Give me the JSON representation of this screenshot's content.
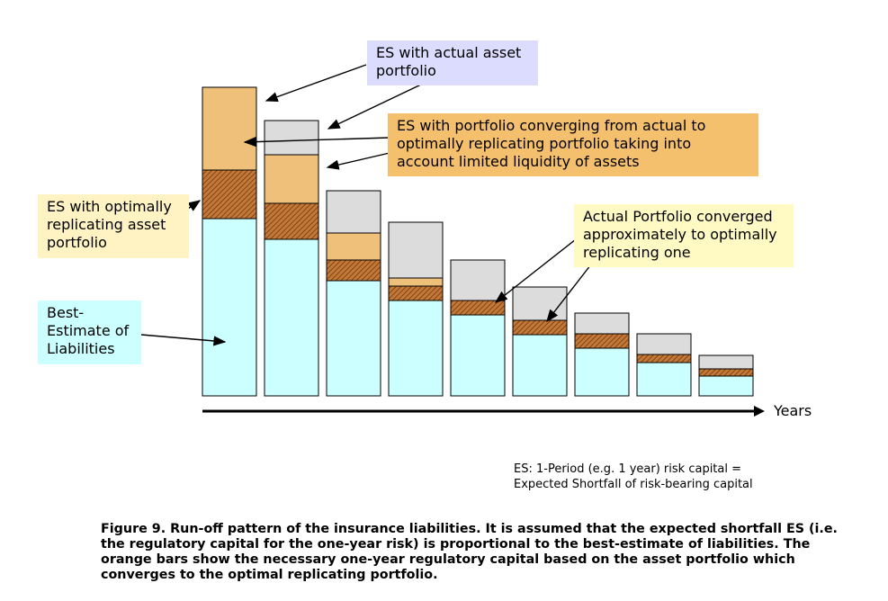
{
  "chart_data": {
    "type": "bar",
    "stacked": true,
    "categories": [
      "",
      "",
      "",
      "",
      "",
      "",
      "",
      "",
      ""
    ],
    "series": [
      {
        "key": "bel",
        "values": [
          197,
          174,
          128,
          106,
          90,
          68,
          53,
          37,
          22
        ]
      },
      {
        "key": "es_opt",
        "values": [
          54,
          40,
          23,
          16,
          16,
          16,
          16,
          9,
          8
        ]
      },
      {
        "key": "es_conv",
        "values": [
          92,
          54,
          30,
          9,
          0,
          0,
          0,
          0,
          0
        ]
      },
      {
        "key": "es_actual",
        "values": [
          0,
          38,
          47,
          62,
          45,
          37,
          23,
          23,
          15
        ]
      }
    ],
    "colors": {
      "bel": "#ccffff",
      "es_opt": "#b86a28",
      "es_conv": "#eec07a",
      "es_actual": "#dcdcdc",
      "optimal_box": "#fff3c4",
      "converging_box": "#f5c06e",
      "actual_box": "#dcdcff",
      "converged_box": "#fffac4"
    },
    "grid": false,
    "legend": "none",
    "xlabel": "Years"
  },
  "callouts": {
    "actual": "ES with actual asset\nportfolio",
    "converging": "ES with portfolio converging from actual to\noptimally replicating portfolio taking into\naccount limited liquidity of assets",
    "optimal": "ES with optimally\nreplicating asset\nportfolio",
    "converged": "Actual Portfolio converged\napproximately to optimally\nreplicating one",
    "bel": "Best-\nEstimate of\nLiabilities"
  },
  "note": "ES: 1-Period (e.g. 1 year) risk capital =\nExpected Shortfall of risk-bearing capital",
  "caption": "Figure 9. Run-off pattern of the insurance liabilities. It is assumed that the expected shortfall ES (i.e. the regulatory capital for the one-year risk) is proportional to the best-estimate of liabilities. The orange bars show the necessary one-year regulatory capital based on the asset portfolio which converges to the optimal replicating portfolio."
}
